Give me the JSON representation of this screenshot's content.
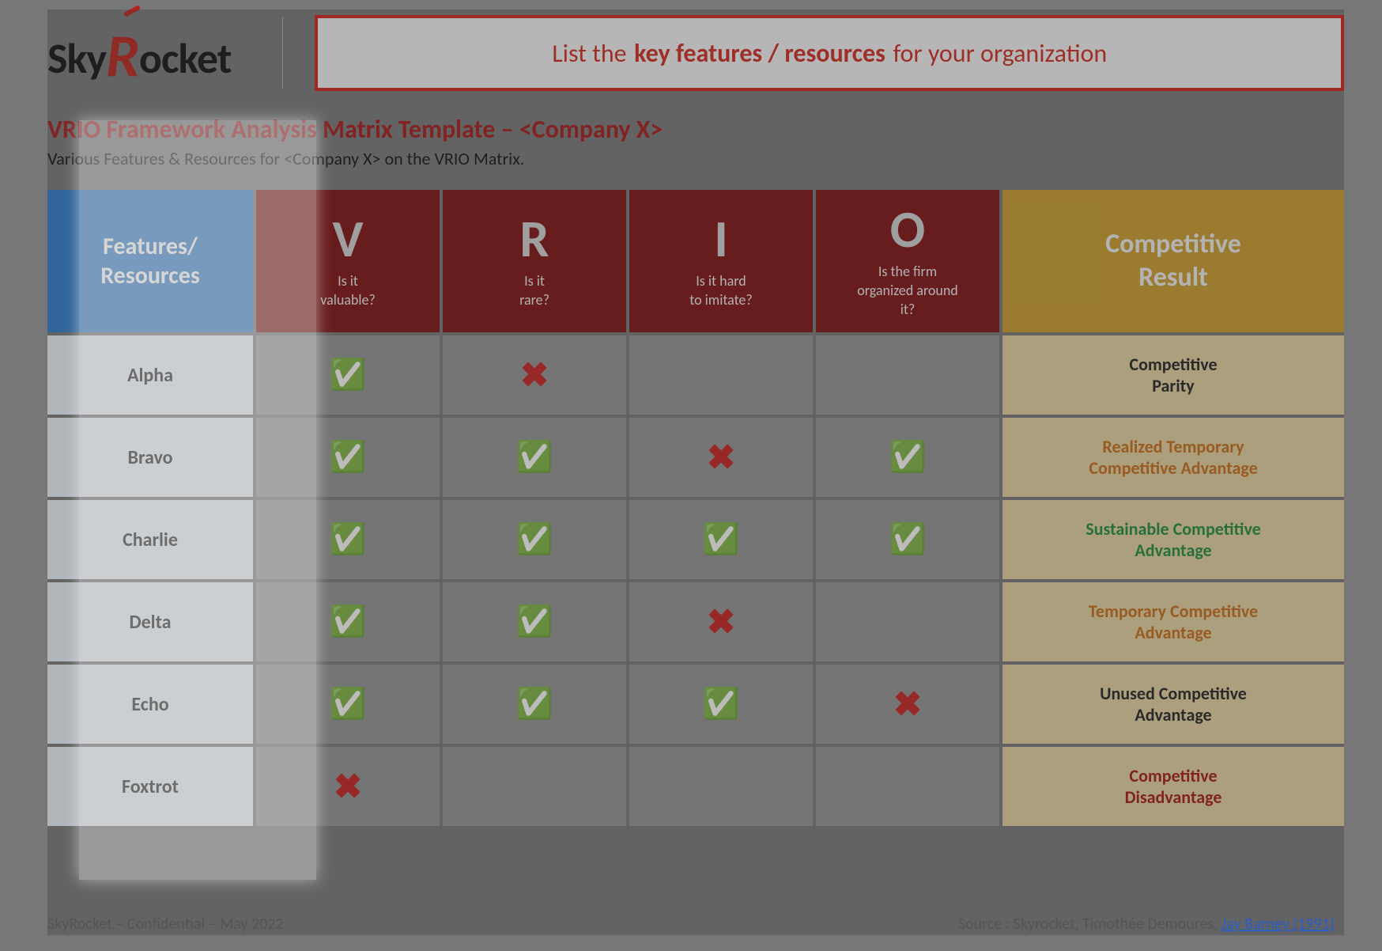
{
  "brand": {
    "part1": "Sky",
    "r": "R",
    "part2": "ocket"
  },
  "callout": {
    "pre": "List the",
    "bold": "key features / resources",
    "post": "for your organization"
  },
  "title": "VRIO Framework Analysis Matrix Template – <Company X>",
  "subtitle": "Various Features & Resources for <Company X> on the VRIO Matrix.",
  "headers": {
    "features_line1": "Features/",
    "features_line2": "Resources",
    "vrio": [
      {
        "letter": "V",
        "question": "Is it\nvaluable?"
      },
      {
        "letter": "R",
        "question": "Is it\nrare?"
      },
      {
        "letter": "I",
        "question": "Is it hard\nto imitate?"
      },
      {
        "letter": "O",
        "question": "Is the firm\norganized around\nit?"
      }
    ],
    "result_line1": "Competitive",
    "result_line2": "Result"
  },
  "colors": {
    "features_header_bg": "#2d79c7",
    "vrio_header_bg": "#7d0f0f",
    "result_header_bg": "#c79a2a",
    "feature_cell_bg": "#e9f0f8",
    "value_cell_bg": "#919191",
    "result_cell_bg": "#e2cf9c",
    "callout_border": "#cc1f1a",
    "results": {
      "neutral": "#222222",
      "orange": "#c46a17",
      "green": "#1e8a3b",
      "red": "#a31818"
    }
  },
  "symbols": {
    "yes": "✅",
    "no": "✖",
    "blank": ""
  },
  "rows": [
    {
      "name": "Alpha",
      "v": "yes",
      "r": "no",
      "i": "blank",
      "o": "blank",
      "result": "Competitive\nParity",
      "result_color": "neutral"
    },
    {
      "name": "Bravo",
      "v": "yes",
      "r": "yes",
      "i": "no",
      "o": "yes",
      "result": "Realized Temporary\nCompetitive Advantage",
      "result_color": "orange"
    },
    {
      "name": "Charlie",
      "v": "yes",
      "r": "yes",
      "i": "yes",
      "o": "yes",
      "result": "Sustainable Competitive\nAdvantage",
      "result_color": "green"
    },
    {
      "name": "Delta",
      "v": "yes",
      "r": "yes",
      "i": "no",
      "o": "blank",
      "result": "Temporary Competitive\nAdvantage",
      "result_color": "orange"
    },
    {
      "name": "Echo",
      "v": "yes",
      "r": "yes",
      "i": "yes",
      "o": "no",
      "result": "Unused Competitive\nAdvantage",
      "result_color": "neutral"
    },
    {
      "name": "Foxtrot",
      "v": "no",
      "r": "blank",
      "i": "blank",
      "o": "blank",
      "result": "Competitive\nDisadvantage",
      "result_color": "red"
    }
  ],
  "footer": {
    "left": "SkyRocket – Confidential – May 2022",
    "right_pre": "Source : Skyrocket, Timothée Demoures,  ",
    "right_link": "Jay Barney (1991)"
  }
}
